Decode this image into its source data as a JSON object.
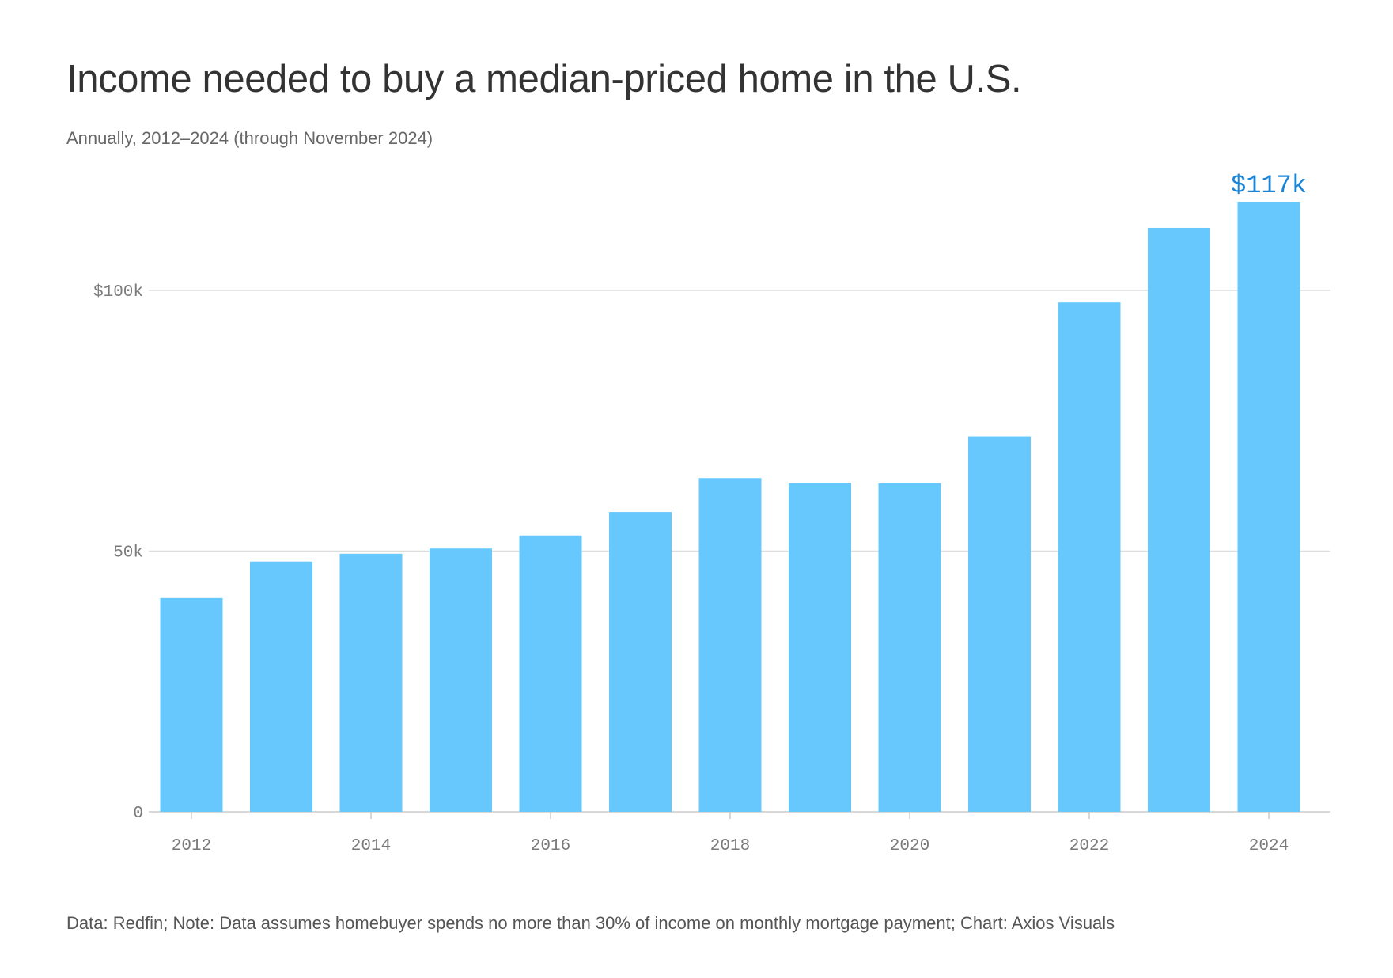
{
  "header": {
    "title": "Income needed to buy a median-priced home in the U.S.",
    "subtitle": "Annually, 2012–2024 (through November 2024)"
  },
  "footer": {
    "source": "Data: Redfin; Note: Data assumes homebuyer spends no more than 30% of income on monthly mortgage payment; Chart: Axios Visuals"
  },
  "colors": {
    "bar": "#66c8fd",
    "highlight_label": "#1a84d6",
    "grid": "#dddddd",
    "axis_text": "#7a7a7a"
  },
  "chart_data": {
    "type": "bar",
    "title": "Income needed to buy a median-priced home in the U.S.",
    "subtitle": "Annually, 2012–2024 (through November 2024)",
    "xlabel": "",
    "ylabel": "",
    "categories": [
      "2012",
      "2013",
      "2014",
      "2015",
      "2016",
      "2017",
      "2018",
      "2019",
      "2020",
      "2021",
      "2022",
      "2023",
      "2024"
    ],
    "values": [
      41000,
      48000,
      49500,
      50500,
      53000,
      57500,
      64000,
      63000,
      63000,
      72000,
      97700,
      112000,
      117000
    ],
    "x_tick_labels": [
      "2012",
      "2014",
      "2016",
      "2018",
      "2020",
      "2022",
      "2024"
    ],
    "y_ticks": [
      0,
      50000,
      100000
    ],
    "y_tick_labels": [
      "0",
      "50k",
      "$100k"
    ],
    "ylim": [
      0,
      117000
    ],
    "grid": true,
    "legend": "none",
    "annotations": [
      {
        "category": "2024",
        "text": "$117k"
      }
    ]
  }
}
